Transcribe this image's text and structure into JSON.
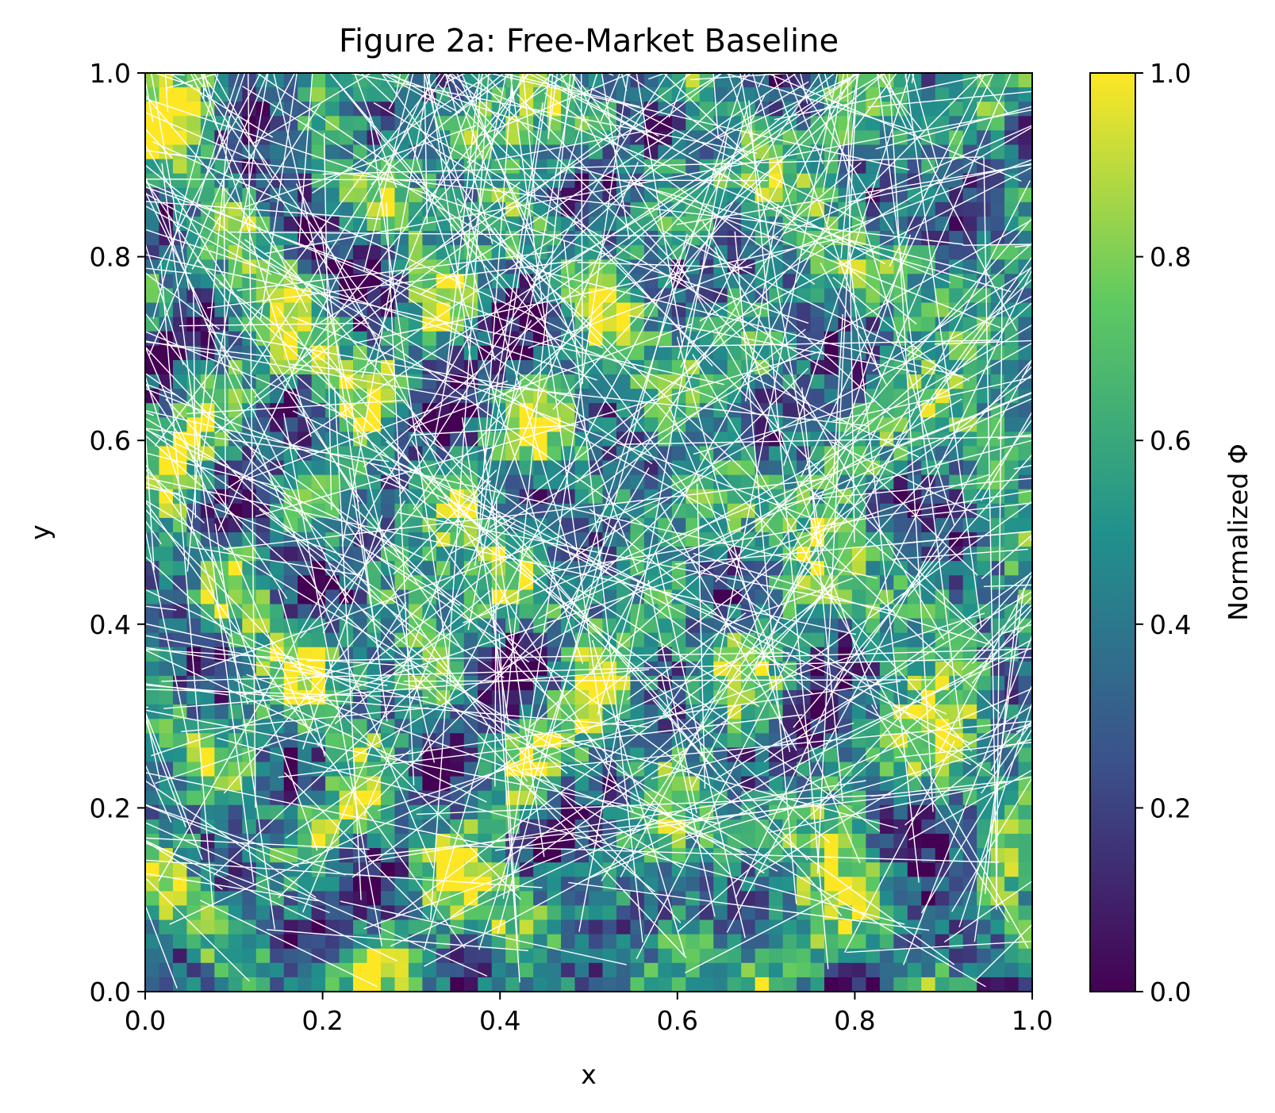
{
  "chart_data": {
    "type": "heatmap",
    "title": "Figure 2a: Free-Market Baseline",
    "xlabel": "x",
    "ylabel": "y",
    "xlim": [
      0.0,
      1.0
    ],
    "ylim": [
      0.0,
      1.0
    ],
    "xticks": [
      "0.0",
      "0.2",
      "0.4",
      "0.6",
      "0.8",
      "1.0"
    ],
    "yticks": [
      "0.0",
      "0.2",
      "0.4",
      "0.6",
      "0.8",
      "1.0"
    ],
    "colorbar": {
      "label": "Normalized Φ",
      "range": [
        0.0,
        1.0
      ],
      "ticks": [
        "0.0",
        "0.2",
        "0.4",
        "0.6",
        "0.8",
        "1.0"
      ],
      "colormap": "viridis"
    },
    "overlay": "dense network of straight white line segments crossing the field",
    "grid": false,
    "colors": {
      "overlay_lines": "#ffffff",
      "viridis": [
        "#440154",
        "#3b528b",
        "#21918c",
        "#5ec962",
        "#fde725"
      ]
    }
  }
}
